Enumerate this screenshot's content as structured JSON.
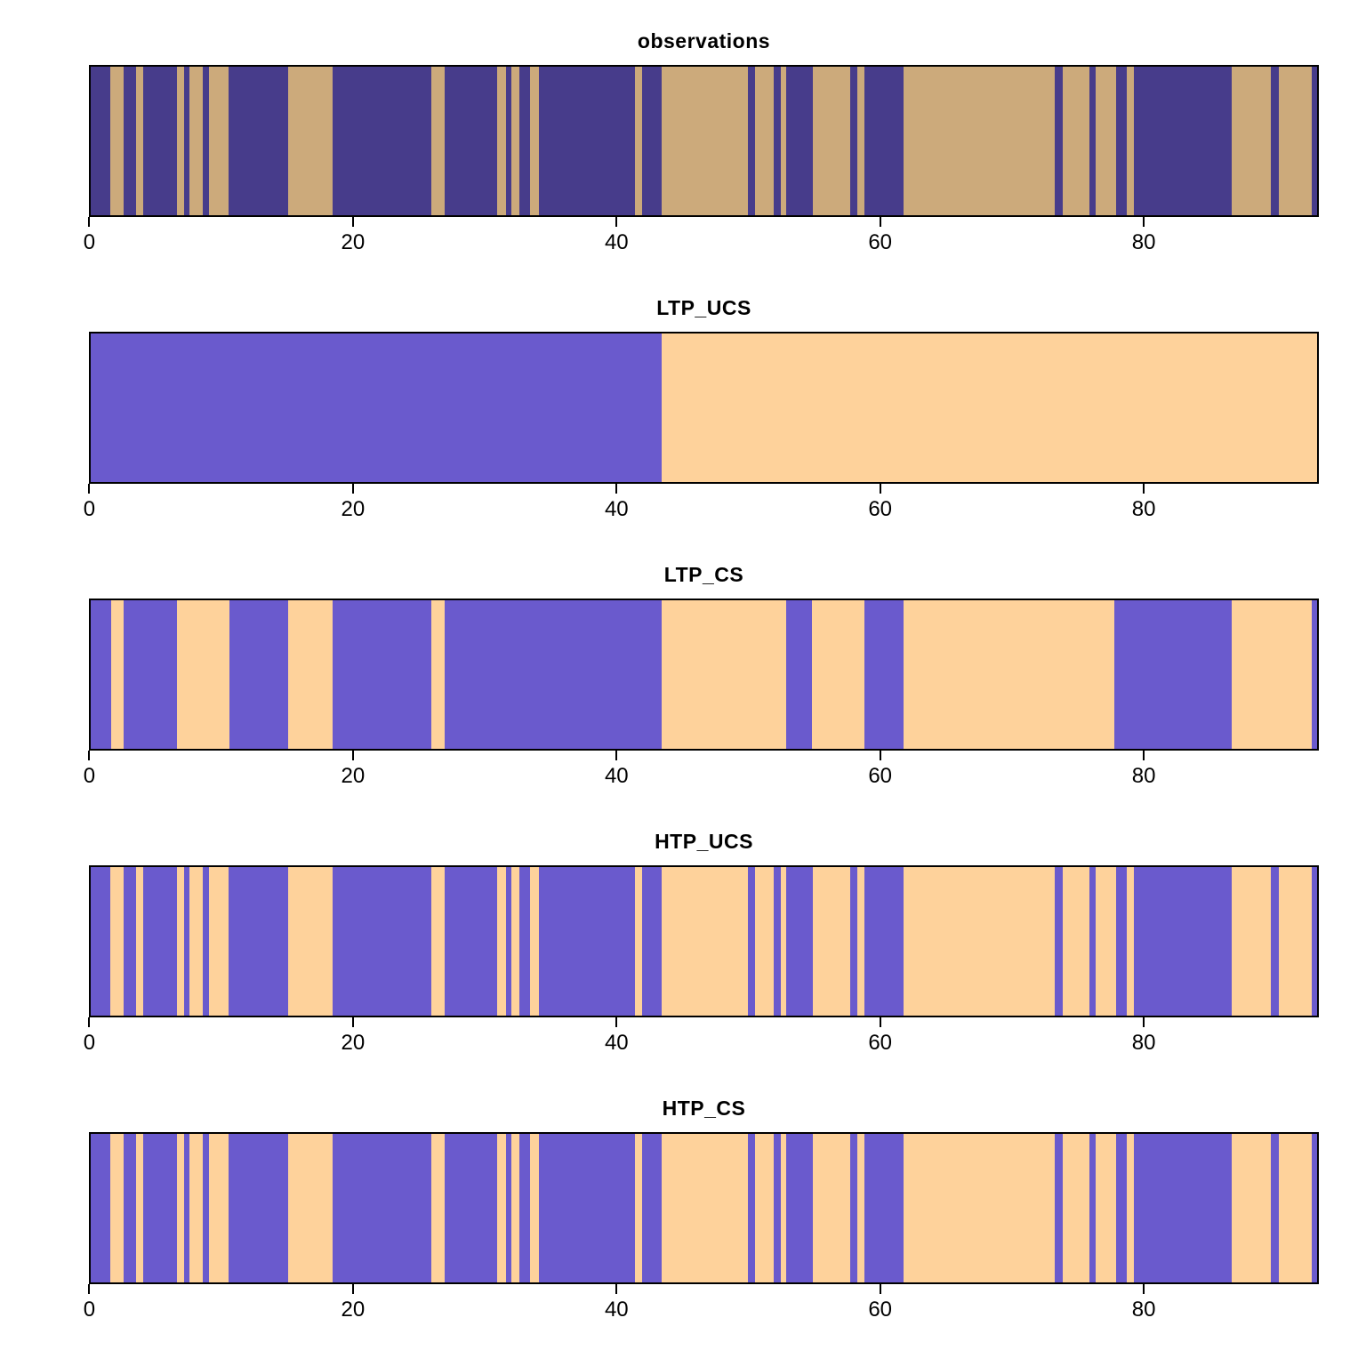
{
  "figure": {
    "background": "#ffffff"
  },
  "chart_data": {
    "type": "heatmap",
    "subtype": "categorical-state-sequence-strips",
    "xlabel": "",
    "ylabel": "",
    "xlim": [
      0,
      93.3
    ],
    "xticks": [
      0,
      20,
      40,
      60,
      80
    ],
    "grid": false,
    "legend": "none",
    "panels": [
      {
        "title": "observations",
        "colors": [
          "#473c8b",
          "#ccaa7b"
        ],
        "runs": [
          [
            0,
            0,
            1.45
          ],
          [
            1,
            1.45,
            2.5
          ],
          [
            0,
            2.5,
            3.45
          ],
          [
            1,
            3.45,
            3.95
          ],
          [
            0,
            3.95,
            6.5
          ],
          [
            1,
            6.5,
            7.1
          ],
          [
            0,
            7.1,
            7.5
          ],
          [
            1,
            7.5,
            8.5
          ],
          [
            0,
            8.5,
            9.0
          ],
          [
            1,
            9.0,
            10.45
          ],
          [
            0,
            10.45,
            15.0
          ],
          [
            1,
            15.0,
            18.4
          ],
          [
            0,
            18.4,
            25.9
          ],
          [
            1,
            25.9,
            26.9
          ],
          [
            0,
            26.9,
            30.9
          ],
          [
            1,
            30.9,
            31.55
          ],
          [
            0,
            31.55,
            31.95
          ],
          [
            1,
            31.95,
            32.6
          ],
          [
            0,
            32.6,
            33.4
          ],
          [
            1,
            33.4,
            34.05
          ],
          [
            0,
            34.05,
            41.35
          ],
          [
            1,
            41.35,
            41.95
          ],
          [
            0,
            41.95,
            43.4
          ],
          [
            1,
            43.4,
            50.0
          ],
          [
            0,
            50.0,
            50.55
          ],
          [
            1,
            50.55,
            51.95
          ],
          [
            0,
            51.95,
            52.45
          ],
          [
            1,
            52.45,
            52.9
          ],
          [
            0,
            52.9,
            54.9
          ],
          [
            1,
            54.9,
            57.75
          ],
          [
            0,
            57.75,
            58.3
          ],
          [
            1,
            58.3,
            58.85
          ],
          [
            0,
            58.85,
            61.85
          ],
          [
            1,
            61.85,
            73.3
          ],
          [
            0,
            73.3,
            73.9
          ],
          [
            1,
            73.9,
            75.95
          ],
          [
            0,
            75.95,
            76.45
          ],
          [
            1,
            76.45,
            78.0
          ],
          [
            0,
            78.0,
            78.8
          ],
          [
            1,
            78.8,
            79.35
          ],
          [
            0,
            79.35,
            86.8
          ],
          [
            1,
            86.8,
            89.8
          ],
          [
            0,
            89.8,
            90.4
          ],
          [
            1,
            90.4,
            92.9
          ],
          [
            0,
            92.9,
            93.3
          ]
        ]
      },
      {
        "title": "LTP_UCS",
        "colors": [
          "#6a5acd",
          "#fed29b"
        ],
        "runs": [
          [
            0,
            0,
            43.4
          ],
          [
            1,
            43.4,
            93.3
          ]
        ]
      },
      {
        "title": "LTP_CS",
        "colors": [
          "#6a5acd",
          "#fed29b"
        ],
        "runs": [
          [
            0,
            0,
            1.5
          ],
          [
            1,
            1.5,
            2.5
          ],
          [
            0,
            2.5,
            6.5
          ],
          [
            1,
            6.5,
            10.5
          ],
          [
            0,
            10.5,
            15.0
          ],
          [
            1,
            15.0,
            18.4
          ],
          [
            0,
            18.4,
            25.9
          ],
          [
            1,
            25.9,
            26.9
          ],
          [
            0,
            26.9,
            43.4
          ],
          [
            1,
            43.4,
            52.9
          ],
          [
            0,
            52.9,
            54.85
          ],
          [
            1,
            54.85,
            58.85
          ],
          [
            0,
            58.85,
            61.85
          ],
          [
            1,
            61.85,
            77.85
          ],
          [
            0,
            77.85,
            86.8
          ],
          [
            1,
            86.8,
            92.9
          ],
          [
            0,
            92.9,
            93.3
          ]
        ]
      },
      {
        "title": "HTP_UCS",
        "colors": [
          "#6a5acd",
          "#fed29b"
        ],
        "runs": [
          [
            0,
            0,
            1.45
          ],
          [
            1,
            1.45,
            2.5
          ],
          [
            0,
            2.5,
            3.45
          ],
          [
            1,
            3.45,
            3.95
          ],
          [
            0,
            3.95,
            6.5
          ],
          [
            1,
            6.5,
            7.1
          ],
          [
            0,
            7.1,
            7.5
          ],
          [
            1,
            7.5,
            8.5
          ],
          [
            0,
            8.5,
            9.0
          ],
          [
            1,
            9.0,
            10.45
          ],
          [
            0,
            10.45,
            15.0
          ],
          [
            1,
            15.0,
            18.4
          ],
          [
            0,
            18.4,
            25.9
          ],
          [
            1,
            25.9,
            26.9
          ],
          [
            0,
            26.9,
            30.9
          ],
          [
            1,
            30.9,
            31.55
          ],
          [
            0,
            31.55,
            31.95
          ],
          [
            1,
            31.95,
            32.6
          ],
          [
            0,
            32.6,
            33.4
          ],
          [
            1,
            33.4,
            34.05
          ],
          [
            0,
            34.05,
            41.35
          ],
          [
            1,
            41.35,
            41.95
          ],
          [
            0,
            41.95,
            43.4
          ],
          [
            1,
            43.4,
            50.0
          ],
          [
            0,
            50.0,
            50.55
          ],
          [
            1,
            50.55,
            51.95
          ],
          [
            0,
            51.95,
            52.45
          ],
          [
            1,
            52.45,
            52.9
          ],
          [
            0,
            52.9,
            54.9
          ],
          [
            1,
            54.9,
            57.75
          ],
          [
            0,
            57.75,
            58.3
          ],
          [
            1,
            58.3,
            58.85
          ],
          [
            0,
            58.85,
            61.85
          ],
          [
            1,
            61.85,
            73.3
          ],
          [
            0,
            73.3,
            73.9
          ],
          [
            1,
            73.9,
            75.95
          ],
          [
            0,
            75.95,
            76.45
          ],
          [
            1,
            76.45,
            78.0
          ],
          [
            0,
            78.0,
            78.8
          ],
          [
            1,
            78.8,
            79.35
          ],
          [
            0,
            79.35,
            86.8
          ],
          [
            1,
            86.8,
            89.8
          ],
          [
            0,
            89.8,
            90.4
          ],
          [
            1,
            90.4,
            92.9
          ],
          [
            0,
            92.9,
            93.3
          ]
        ]
      },
      {
        "title": "HTP_CS",
        "colors": [
          "#6a5acd",
          "#fed29b"
        ],
        "runs": [
          [
            0,
            0,
            1.45
          ],
          [
            1,
            1.45,
            2.5
          ],
          [
            0,
            2.5,
            3.45
          ],
          [
            1,
            3.45,
            3.95
          ],
          [
            0,
            3.95,
            6.5
          ],
          [
            1,
            6.5,
            7.1
          ],
          [
            0,
            7.1,
            7.5
          ],
          [
            1,
            7.5,
            8.5
          ],
          [
            0,
            8.5,
            9.0
          ],
          [
            1,
            9.0,
            10.45
          ],
          [
            0,
            10.45,
            15.0
          ],
          [
            1,
            15.0,
            18.4
          ],
          [
            0,
            18.4,
            25.9
          ],
          [
            1,
            25.9,
            26.9
          ],
          [
            0,
            26.9,
            30.9
          ],
          [
            1,
            30.9,
            31.55
          ],
          [
            0,
            31.55,
            31.95
          ],
          [
            1,
            31.95,
            32.6
          ],
          [
            0,
            32.6,
            33.4
          ],
          [
            1,
            33.4,
            34.05
          ],
          [
            0,
            34.05,
            41.35
          ],
          [
            1,
            41.35,
            41.95
          ],
          [
            0,
            41.95,
            43.4
          ],
          [
            1,
            43.4,
            50.0
          ],
          [
            0,
            50.0,
            50.55
          ],
          [
            1,
            50.55,
            51.95
          ],
          [
            0,
            51.95,
            52.45
          ],
          [
            1,
            52.45,
            52.9
          ],
          [
            0,
            52.9,
            54.9
          ],
          [
            1,
            54.9,
            57.75
          ],
          [
            0,
            57.75,
            58.3
          ],
          [
            1,
            58.3,
            58.85
          ],
          [
            0,
            58.85,
            61.85
          ],
          [
            1,
            61.85,
            73.3
          ],
          [
            0,
            73.3,
            73.9
          ],
          [
            1,
            73.9,
            75.95
          ],
          [
            0,
            75.95,
            76.45
          ],
          [
            1,
            76.45,
            78.0
          ],
          [
            0,
            78.0,
            78.8
          ],
          [
            1,
            78.8,
            79.35
          ],
          [
            0,
            79.35,
            86.8
          ],
          [
            1,
            86.8,
            89.8
          ],
          [
            0,
            89.8,
            90.4
          ],
          [
            1,
            90.4,
            92.9
          ],
          [
            0,
            92.9,
            93.3
          ]
        ]
      }
    ]
  }
}
